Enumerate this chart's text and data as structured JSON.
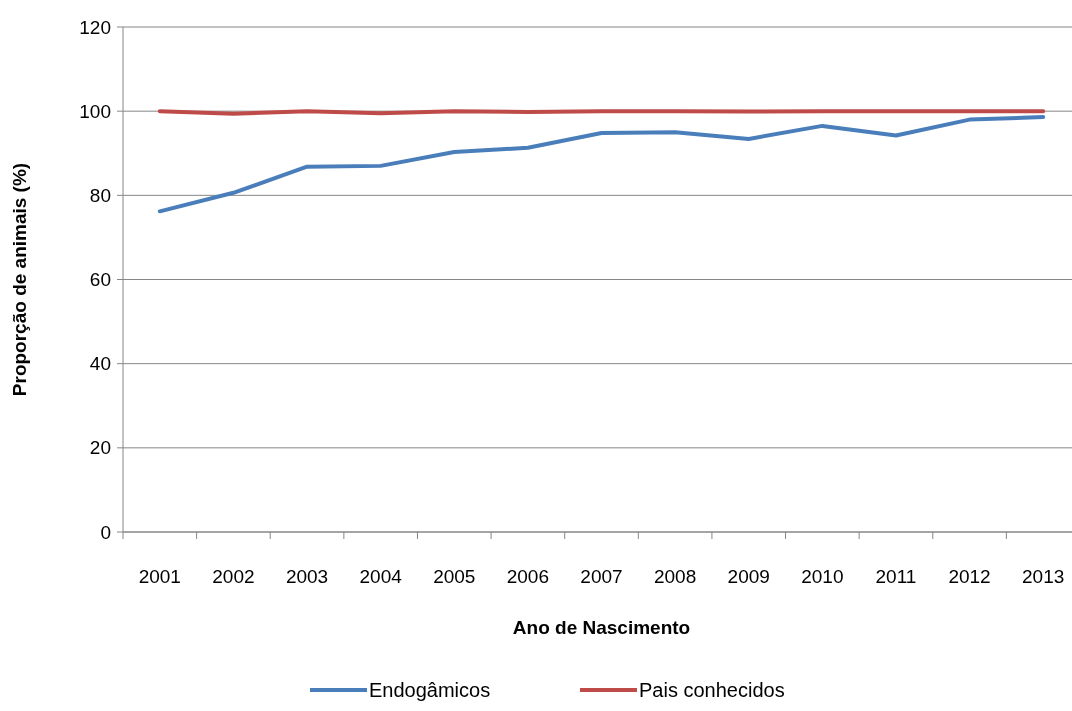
{
  "chart_data": {
    "type": "line",
    "xlabel": "Ano de Nascimento",
    "ylabel": "Proporção de animais (%)",
    "categories": [
      "2001",
      "2002",
      "2003",
      "2004",
      "2005",
      "2006",
      "2007",
      "2008",
      "2009",
      "2010",
      "2011",
      "2012",
      "2013"
    ],
    "series": [
      {
        "name": "Endogâmicos",
        "color": "#4a7ebb",
        "values": [
          76.2,
          80.6,
          86.8,
          87.0,
          90.3,
          91.3,
          94.8,
          95.0,
          93.4,
          96.5,
          94.2,
          98.0,
          98.6
        ]
      },
      {
        "name": "Pais conhecidos",
        "color": "#be4b48",
        "values": [
          100,
          99.4,
          100,
          99.5,
          100,
          99.8,
          100,
          100,
          99.9,
          100,
          100,
          100,
          100
        ]
      }
    ],
    "ylim": [
      0,
      120
    ],
    "yticks": [
      0,
      20,
      40,
      60,
      80,
      100,
      120
    ],
    "grid": "y",
    "legend": "bottom",
    "marker": "none",
    "line_style": "solid"
  }
}
